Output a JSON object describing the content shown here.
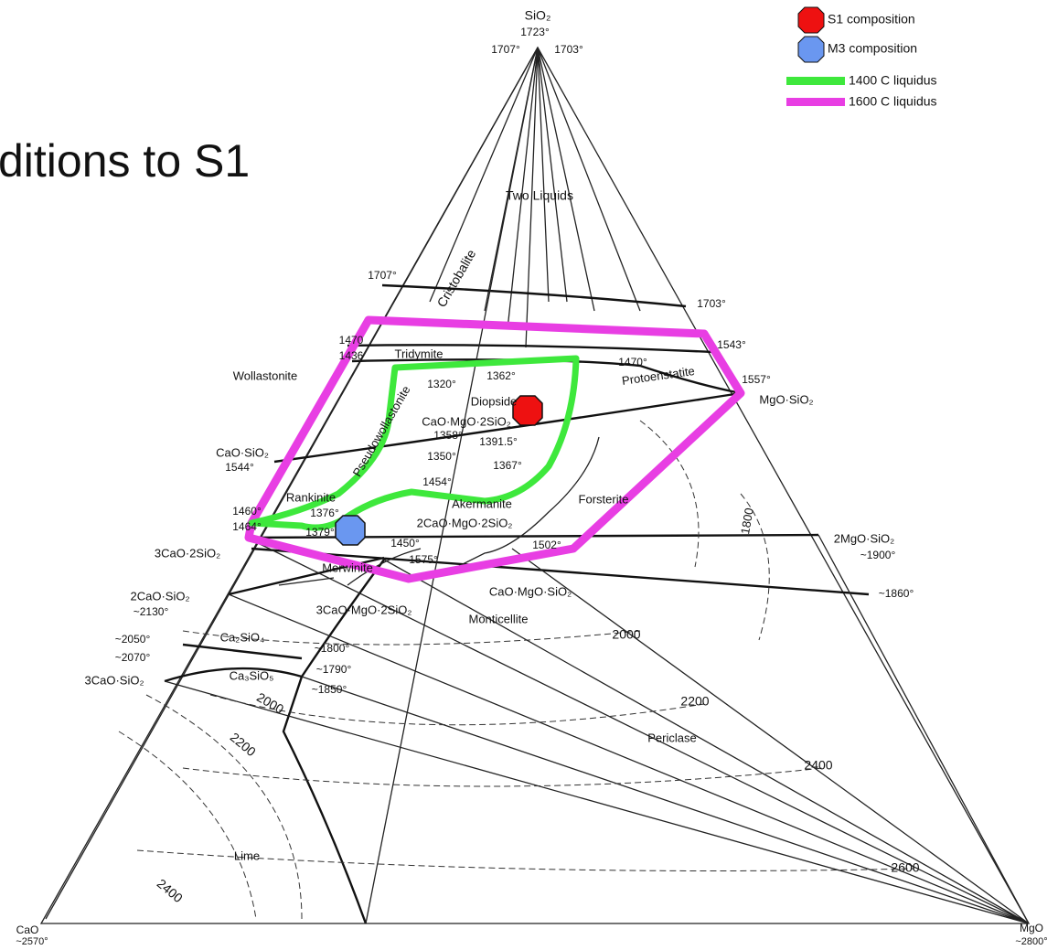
{
  "title": "ditions to S1",
  "legend": [
    {
      "label": "S1 composition"
    },
    {
      "label": "M3 composition"
    },
    {
      "label": "1400 C liquidus"
    },
    {
      "label": "1600 C liquidus"
    }
  ],
  "labels": [
    "SiO₂",
    "1723°",
    "1707°",
    "1703°",
    "Two Liquids",
    "Cristobalite",
    "1707°",
    "1703°",
    "1470",
    "1436",
    "Tridymite",
    "1470°",
    "1543°",
    "Wollastonite",
    "1320°",
    "1362°",
    "Protoenstatite",
    "1557°",
    "MgO·SiO₂",
    "Diopside",
    "CaO·MgO·2SiO₂",
    "1358°",
    "1391.5°",
    "CaO·SiO₂",
    "1544°",
    "Pseudowollastonite",
    "1350°",
    "1367°",
    "1454°",
    "Rankinite",
    "1376°",
    "Akermanite",
    "2CaO·MgO·2SiO₂",
    "Forsterite",
    "1460°",
    "1464°",
    "1379°",
    "1450°",
    "1502°",
    "1575°",
    "3CaO·2SiO₂",
    "2MgO·SiO₂",
    "~1900°",
    "Merwinite",
    "2CaO·SiO₂",
    "~2130°",
    "CaO·MgO·SiO₂",
    "~1860°",
    "3CaO·MgO·2SiO₂",
    "Monticellite",
    "2000",
    "~2050°",
    "~1800°",
    "Ca₂SiO₄",
    "~2070°",
    "~1790°",
    "Ca₃SiO₅",
    "3CaO·SiO₂",
    "~1850°",
    "2000",
    "2200",
    "2200",
    "Periclase",
    "2400",
    "2400",
    "Lime",
    "2600",
    "1800",
    "CaO",
    "~2570°",
    "MgO",
    "~2800°"
  ]
}
